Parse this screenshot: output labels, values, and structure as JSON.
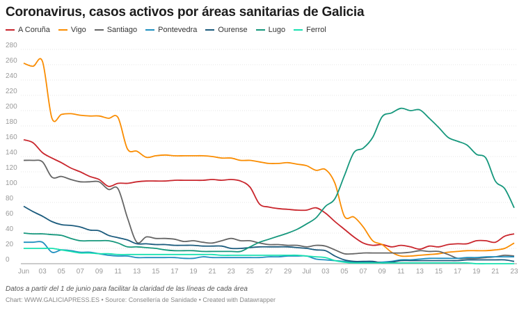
{
  "chart_data": {
    "type": "line",
    "title": "Coronavirus, casos activos por áreas sanitarias de Galicia",
    "note": "Datos a partir del 1 de junio para facilitar la claridad de las líneas de cada área",
    "credit": "Chart: WWW.GALICIAPRESS.ES • Source: Consellería de Sanidade • Created with Datawrapper",
    "ylim": [
      0,
      280
    ],
    "yticks": [
      0,
      20,
      40,
      60,
      80,
      100,
      120,
      140,
      160,
      180,
      200,
      220,
      240,
      260,
      280
    ],
    "grid": true,
    "legend": "top-left",
    "x": [
      "Jun 1",
      "Jun 2",
      "Jun 3",
      "Jun 4",
      "Jun 5",
      "Jun 6",
      "Jun 7",
      "Jun 8",
      "Jun 9",
      "Jun 10",
      "Jun 11",
      "Jun 12",
      "Jun 13",
      "Jun 14",
      "Jun 15",
      "Jun 16",
      "Jun 17",
      "Jun 18",
      "Jun 19",
      "Jun 20",
      "Jun 21",
      "Jun 22",
      "Jun 23",
      "Jun 24",
      "Jun 25",
      "Jun 26",
      "Jun 27",
      "Jun 28",
      "Jun 29",
      "Jun 30",
      "Jul 1",
      "Jul 2",
      "Jul 3",
      "Jul 4",
      "Jul 5",
      "Jul 6",
      "Jul 7",
      "Jul 8",
      "Jul 9",
      "Jul 10",
      "Jul 11",
      "Jul 12",
      "Jul 13",
      "Jul 14",
      "Jul 15",
      "Jul 16",
      "Jul 17",
      "Jul 18",
      "Jul 19",
      "Jul 20",
      "Jul 21",
      "Jul 22",
      "Jul 23"
    ],
    "xtick_labels": [
      "Jun",
      "03",
      "05",
      "07",
      "09",
      "11",
      "13",
      "15",
      "17",
      "19",
      "21",
      "23",
      "25",
      "27",
      "29",
      "Jul",
      "03",
      "05",
      "07",
      "09",
      "11",
      "13",
      "15",
      "17",
      "19",
      "21",
      "23"
    ],
    "series": [
      {
        "name": "A Coruña",
        "color": "#c9252c",
        "values": [
          162,
          158,
          145,
          138,
          132,
          125,
          120,
          114,
          110,
          101,
          105,
          105,
          107,
          108,
          108,
          108,
          109,
          109,
          109,
          109,
          110,
          109,
          110,
          108,
          100,
          78,
          74,
          72,
          71,
          70,
          70,
          73,
          66,
          55,
          45,
          35,
          27,
          24,
          25,
          22,
          24,
          22,
          19,
          23,
          22,
          25,
          26,
          26,
          30,
          30,
          28,
          36,
          39
        ]
      },
      {
        "name": "Vigo",
        "color": "#fa8c00",
        "values": [
          262,
          258,
          264,
          190,
          195,
          196,
          194,
          193,
          193,
          190,
          191,
          150,
          147,
          139,
          141,
          142,
          141,
          141,
          141,
          141,
          140,
          138,
          138,
          135,
          135,
          133,
          131,
          131,
          132,
          130,
          128,
          122,
          123,
          105,
          62,
          61,
          48,
          30,
          25,
          15,
          10,
          10,
          11,
          12,
          13,
          15,
          16,
          17,
          17,
          17,
          18,
          20,
          27
        ]
      },
      {
        "name": "Santiago",
        "color": "#656565",
        "values": [
          135,
          135,
          133,
          113,
          114,
          110,
          107,
          107,
          107,
          97,
          98,
          60,
          28,
          35,
          33,
          33,
          32,
          29,
          30,
          28,
          27,
          30,
          33,
          30,
          30,
          27,
          25,
          25,
          24,
          24,
          22,
          24,
          23,
          18,
          13,
          13,
          14,
          14,
          14,
          14,
          14,
          15,
          17,
          16,
          16,
          12,
          7,
          7,
          7,
          8,
          9,
          11,
          10
        ]
      },
      {
        "name": "Pontevedra",
        "color": "#1f8fbf",
        "values": [
          28,
          28,
          28,
          15,
          18,
          17,
          15,
          15,
          13,
          11,
          10,
          10,
          8,
          8,
          8,
          8,
          8,
          7,
          7,
          9,
          8,
          8,
          8,
          8,
          8,
          8,
          9,
          9,
          10,
          10,
          10,
          6,
          5,
          4,
          3,
          2,
          2,
          2,
          2,
          3,
          5,
          5,
          6,
          7,
          7,
          7,
          7,
          8,
          8,
          9,
          9,
          9,
          9
        ]
      },
      {
        "name": "Ourense",
        "color": "#1b5b7d",
        "values": [
          75,
          68,
          62,
          55,
          51,
          50,
          48,
          44,
          43,
          37,
          34,
          31,
          26,
          26,
          25,
          25,
          24,
          24,
          24,
          23,
          23,
          23,
          20,
          20,
          21,
          22,
          22,
          22,
          22,
          21,
          20,
          18,
          17,
          10,
          5,
          3,
          3,
          3,
          1,
          2,
          4,
          4,
          4,
          4,
          4,
          4,
          4,
          5,
          5,
          5,
          5,
          5,
          3
        ]
      },
      {
        "name": "Lugo",
        "color": "#15977c",
        "values": [
          40,
          39,
          39,
          38,
          37,
          33,
          30,
          30,
          30,
          30,
          27,
          22,
          22,
          21,
          20,
          18,
          17,
          17,
          17,
          16,
          16,
          16,
          16,
          16,
          22,
          28,
          32,
          36,
          40,
          45,
          52,
          60,
          75,
          85,
          115,
          145,
          151,
          165,
          192,
          197,
          203,
          200,
          201,
          190,
          178,
          165,
          160,
          155,
          143,
          138,
          108,
          98,
          73
        ]
      },
      {
        "name": "Ferrol",
        "color": "#18e0b0",
        "values": [
          20,
          20,
          20,
          20,
          18,
          16,
          14,
          14,
          13,
          13,
          12,
          12,
          12,
          12,
          12,
          12,
          12,
          12,
          12,
          12,
          12,
          11,
          11,
          11,
          11,
          11,
          11,
          11,
          11,
          11,
          10,
          9,
          8,
          4,
          2,
          1,
          1,
          1,
          1,
          1,
          1,
          1,
          1,
          1,
          1,
          1,
          1,
          1,
          0,
          0,
          0,
          0,
          0
        ]
      }
    ]
  }
}
